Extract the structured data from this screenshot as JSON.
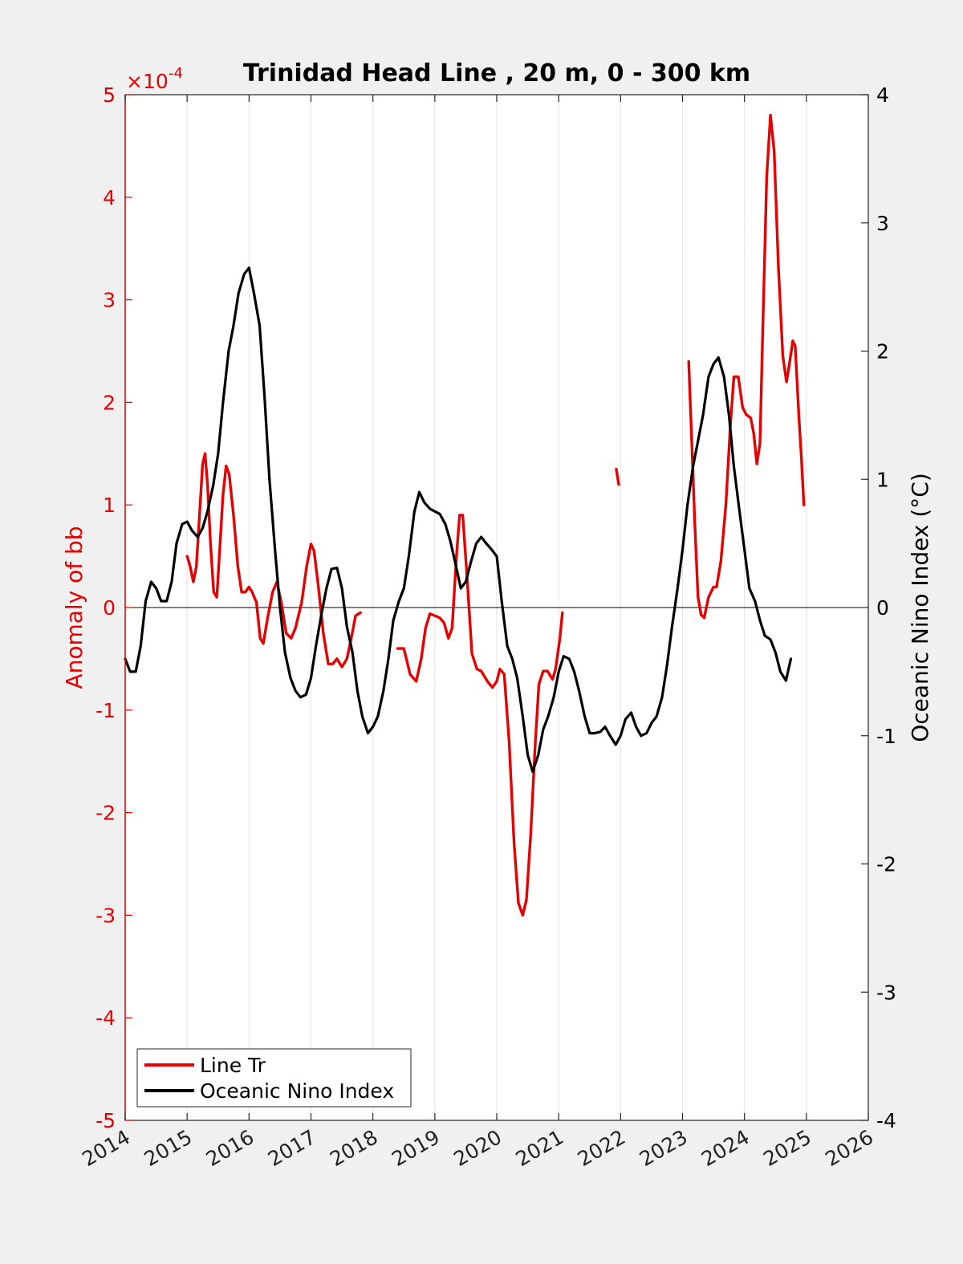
{
  "chart_data": {
    "type": "line",
    "title": "Trinidad Head Line , 20 m, 0 - 300 km",
    "ylabel_left": "Anomaly of bb",
    "ylabel_right": "Oceanic Nino Index (°C)",
    "left_exponent_label": "×10",
    "left_exponent_power": "-4",
    "xlim": [
      2014,
      2026
    ],
    "ylim_left": [
      -5,
      5
    ],
    "ylim_right": [
      -4,
      4
    ],
    "x_ticks": [
      "2014",
      "2015",
      "2016",
      "2017",
      "2018",
      "2019",
      "2020",
      "2021",
      "2022",
      "2023",
      "2024",
      "2025",
      "2026"
    ],
    "y_ticks_left": [
      "5",
      "4",
      "3",
      "2",
      "1",
      "0",
      "-1",
      "-2",
      "-3",
      "-4",
      "-5"
    ],
    "y_ticks_right": [
      "4",
      "3",
      "2",
      "1",
      "0",
      "-1",
      "-2",
      "-3",
      "-4"
    ],
    "legend_placement": "bottom-left",
    "grid": "vertical",
    "series": [
      {
        "name": "Line Tr",
        "color": "#e60000",
        "axis": "left",
        "segments": [
          [
            [
              2015.0,
              0.5
            ],
            [
              2015.05,
              0.4
            ],
            [
              2015.1,
              0.25
            ],
            [
              2015.15,
              0.4
            ],
            [
              2015.2,
              0.9
            ],
            [
              2015.25,
              1.4
            ],
            [
              2015.29,
              1.5
            ],
            [
              2015.33,
              1.2
            ],
            [
              2015.38,
              0.6
            ],
            [
              2015.43,
              0.15
            ],
            [
              2015.48,
              0.1
            ],
            [
              2015.52,
              0.5
            ],
            [
              2015.58,
              1.1
            ],
            [
              2015.63,
              1.38
            ],
            [
              2015.68,
              1.3
            ],
            [
              2015.75,
              0.9
            ],
            [
              2015.82,
              0.4
            ],
            [
              2015.88,
              0.15
            ],
            [
              2015.94,
              0.15
            ],
            [
              2016.0,
              0.2
            ],
            [
              2016.05,
              0.15
            ],
            [
              2016.12,
              0.05
            ],
            [
              2016.18,
              -0.3
            ],
            [
              2016.23,
              -0.35
            ],
            [
              2016.3,
              -0.1
            ],
            [
              2016.38,
              0.15
            ],
            [
              2016.45,
              0.25
            ],
            [
              2016.52,
              0.05
            ],
            [
              2016.6,
              -0.25
            ],
            [
              2016.68,
              -0.3
            ],
            [
              2016.75,
              -0.2
            ],
            [
              2016.85,
              0.05
            ],
            [
              2016.93,
              0.4
            ],
            [
              2017.0,
              0.62
            ],
            [
              2017.05,
              0.55
            ],
            [
              2017.12,
              0.2
            ],
            [
              2017.2,
              -0.25
            ],
            [
              2017.28,
              -0.55
            ],
            [
              2017.35,
              -0.55
            ],
            [
              2017.42,
              -0.5
            ],
            [
              2017.5,
              -0.58
            ],
            [
              2017.58,
              -0.5
            ],
            [
              2017.65,
              -0.3
            ],
            [
              2017.72,
              -0.08
            ],
            [
              2017.8,
              -0.05
            ]
          ],
          [
            [
              2018.4,
              -0.4
            ],
            [
              2018.5,
              -0.4
            ],
            [
              2018.6,
              -0.65
            ],
            [
              2018.7,
              -0.72
            ],
            [
              2018.78,
              -0.5
            ],
            [
              2018.85,
              -0.2
            ],
            [
              2018.92,
              -0.06
            ],
            [
              2019.0,
              -0.08
            ],
            [
              2019.08,
              -0.1
            ],
            [
              2019.15,
              -0.15
            ],
            [
              2019.22,
              -0.3
            ],
            [
              2019.28,
              -0.2
            ],
            [
              2019.35,
              0.5
            ],
            [
              2019.4,
              0.9
            ],
            [
              2019.45,
              0.9
            ],
            [
              2019.52,
              0.3
            ],
            [
              2019.6,
              -0.45
            ],
            [
              2019.68,
              -0.6
            ],
            [
              2019.75,
              -0.62
            ],
            [
              2019.85,
              -0.72
            ],
            [
              2019.93,
              -0.78
            ],
            [
              2020.0,
              -0.72
            ],
            [
              2020.05,
              -0.6
            ],
            [
              2020.12,
              -0.65
            ],
            [
              2020.2,
              -1.3
            ],
            [
              2020.28,
              -2.3
            ],
            [
              2020.35,
              -2.88
            ],
            [
              2020.42,
              -3.0
            ],
            [
              2020.48,
              -2.85
            ],
            [
              2020.55,
              -2.2
            ],
            [
              2020.62,
              -1.35
            ],
            [
              2020.68,
              -0.75
            ],
            [
              2020.75,
              -0.62
            ],
            [
              2020.82,
              -0.62
            ],
            [
              2020.9,
              -0.7
            ],
            [
              2020.95,
              -0.6
            ],
            [
              2021.02,
              -0.3
            ],
            [
              2021.06,
              -0.05
            ]
          ],
          [
            [
              2021.93,
              1.35
            ],
            [
              2021.97,
              1.2
            ]
          ],
          [
            [
              2023.1,
              2.4
            ],
            [
              2023.15,
              1.6
            ],
            [
              2023.2,
              0.8
            ],
            [
              2023.25,
              0.1
            ],
            [
              2023.3,
              -0.07
            ],
            [
              2023.35,
              -0.1
            ],
            [
              2023.42,
              0.1
            ],
            [
              2023.5,
              0.2
            ],
            [
              2023.55,
              0.2
            ],
            [
              2023.62,
              0.45
            ],
            [
              2023.7,
              1.0
            ],
            [
              2023.77,
              1.75
            ],
            [
              2023.83,
              2.25
            ],
            [
              2023.9,
              2.25
            ],
            [
              2023.97,
              1.95
            ],
            [
              2024.03,
              1.88
            ],
            [
              2024.1,
              1.85
            ],
            [
              2024.15,
              1.7
            ],
            [
              2024.2,
              1.4
            ],
            [
              2024.25,
              1.6
            ],
            [
              2024.3,
              2.8
            ],
            [
              2024.36,
              4.2
            ],
            [
              2024.42,
              4.8
            ],
            [
              2024.48,
              4.45
            ],
            [
              2024.55,
              3.3
            ],
            [
              2024.62,
              2.45
            ],
            [
              2024.68,
              2.2
            ],
            [
              2024.72,
              2.35
            ],
            [
              2024.78,
              2.6
            ],
            [
              2024.82,
              2.55
            ],
            [
              2024.88,
              1.85
            ],
            [
              2024.92,
              1.45
            ],
            [
              2024.96,
              1.0
            ]
          ]
        ]
      },
      {
        "name": "Oceanic Nino Index",
        "color": "#000000",
        "axis": "right",
        "segments": [
          [
            [
              2014.0,
              -0.4
            ],
            [
              2014.08,
              -0.5
            ],
            [
              2014.17,
              -0.5
            ],
            [
              2014.25,
              -0.3
            ],
            [
              2014.33,
              0.05
            ],
            [
              2014.42,
              0.2
            ],
            [
              2014.5,
              0.15
            ],
            [
              2014.58,
              0.05
            ],
            [
              2014.67,
              0.05
            ],
            [
              2014.75,
              0.2
            ],
            [
              2014.83,
              0.5
            ],
            [
              2014.92,
              0.65
            ],
            [
              2015.0,
              0.67
            ],
            [
              2015.08,
              0.6
            ],
            [
              2015.17,
              0.55
            ],
            [
              2015.25,
              0.62
            ],
            [
              2015.33,
              0.75
            ],
            [
              2015.42,
              0.95
            ],
            [
              2015.5,
              1.2
            ],
            [
              2015.58,
              1.6
            ],
            [
              2015.67,
              2.0
            ],
            [
              2015.75,
              2.2
            ],
            [
              2015.83,
              2.45
            ],
            [
              2015.92,
              2.6
            ],
            [
              2016.0,
              2.65
            ],
            [
              2016.08,
              2.45
            ],
            [
              2016.17,
              2.2
            ],
            [
              2016.25,
              1.65
            ],
            [
              2016.33,
              1.0
            ],
            [
              2016.42,
              0.45
            ],
            [
              2016.5,
              0.0
            ],
            [
              2016.58,
              -0.35
            ],
            [
              2016.67,
              -0.55
            ],
            [
              2016.75,
              -0.65
            ],
            [
              2016.83,
              -0.7
            ],
            [
              2016.92,
              -0.68
            ],
            [
              2017.0,
              -0.55
            ],
            [
              2017.08,
              -0.3
            ],
            [
              2017.17,
              -0.05
            ],
            [
              2017.25,
              0.15
            ],
            [
              2017.33,
              0.3
            ],
            [
              2017.42,
              0.31
            ],
            [
              2017.5,
              0.15
            ],
            [
              2017.58,
              -0.15
            ],
            [
              2017.67,
              -0.35
            ],
            [
              2017.75,
              -0.65
            ],
            [
              2017.83,
              -0.85
            ],
            [
              2017.92,
              -0.98
            ],
            [
              2018.0,
              -0.93
            ],
            [
              2018.08,
              -0.85
            ],
            [
              2018.17,
              -0.65
            ],
            [
              2018.25,
              -0.4
            ],
            [
              2018.33,
              -0.1
            ],
            [
              2018.42,
              0.05
            ],
            [
              2018.5,
              0.15
            ],
            [
              2018.58,
              0.4
            ],
            [
              2018.67,
              0.75
            ],
            [
              2018.75,
              0.9
            ],
            [
              2018.83,
              0.82
            ],
            [
              2018.92,
              0.77
            ],
            [
              2019.0,
              0.75
            ],
            [
              2019.08,
              0.73
            ],
            [
              2019.17,
              0.65
            ],
            [
              2019.25,
              0.52
            ],
            [
              2019.33,
              0.35
            ],
            [
              2019.42,
              0.15
            ],
            [
              2019.5,
              0.2
            ],
            [
              2019.58,
              0.35
            ],
            [
              2019.67,
              0.5
            ],
            [
              2019.75,
              0.55
            ],
            [
              2019.83,
              0.5
            ],
            [
              2019.92,
              0.45
            ],
            [
              2020.0,
              0.4
            ],
            [
              2020.08,
              0.05
            ],
            [
              2020.17,
              -0.3
            ],
            [
              2020.25,
              -0.4
            ],
            [
              2020.33,
              -0.55
            ],
            [
              2020.42,
              -0.85
            ],
            [
              2020.5,
              -1.15
            ],
            [
              2020.58,
              -1.28
            ],
            [
              2020.67,
              -1.15
            ],
            [
              2020.75,
              -0.95
            ],
            [
              2020.83,
              -0.85
            ],
            [
              2020.92,
              -0.7
            ],
            [
              2021.0,
              -0.5
            ],
            [
              2021.08,
              -0.38
            ],
            [
              2021.17,
              -0.4
            ],
            [
              2021.25,
              -0.5
            ],
            [
              2021.33,
              -0.65
            ],
            [
              2021.42,
              -0.85
            ],
            [
              2021.5,
              -0.98
            ],
            [
              2021.58,
              -0.98
            ],
            [
              2021.67,
              -0.97
            ],
            [
              2021.75,
              -0.93
            ],
            [
              2021.83,
              -1.0
            ],
            [
              2021.92,
              -1.07
            ],
            [
              2022.0,
              -1.0
            ],
            [
              2022.08,
              -0.87
            ],
            [
              2022.17,
              -0.82
            ],
            [
              2022.25,
              -0.93
            ],
            [
              2022.33,
              -1.0
            ],
            [
              2022.42,
              -0.98
            ],
            [
              2022.5,
              -0.9
            ],
            [
              2022.58,
              -0.85
            ],
            [
              2022.67,
              -0.7
            ],
            [
              2022.75,
              -0.45
            ],
            [
              2022.83,
              -0.15
            ],
            [
              2022.92,
              0.15
            ],
            [
              2023.0,
              0.45
            ],
            [
              2023.08,
              0.8
            ],
            [
              2023.17,
              1.1
            ],
            [
              2023.25,
              1.3
            ],
            [
              2023.33,
              1.5
            ],
            [
              2023.42,
              1.8
            ],
            [
              2023.5,
              1.9
            ],
            [
              2023.58,
              1.95
            ],
            [
              2023.67,
              1.8
            ],
            [
              2023.75,
              1.5
            ],
            [
              2023.83,
              1.1
            ],
            [
              2023.92,
              0.75
            ],
            [
              2024.0,
              0.45
            ],
            [
              2024.08,
              0.15
            ],
            [
              2024.17,
              0.05
            ],
            [
              2024.25,
              -0.1
            ],
            [
              2024.33,
              -0.22
            ],
            [
              2024.42,
              -0.25
            ],
            [
              2024.5,
              -0.35
            ],
            [
              2024.58,
              -0.5
            ],
            [
              2024.67,
              -0.57
            ],
            [
              2024.75,
              -0.4
            ]
          ]
        ]
      }
    ]
  }
}
